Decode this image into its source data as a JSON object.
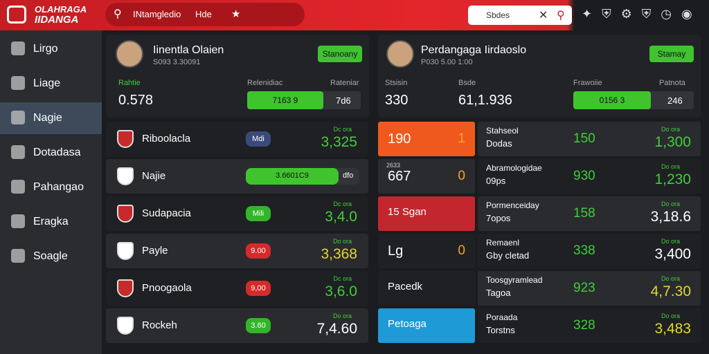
{
  "header": {
    "logo": [
      "OLAHRAGA",
      "IIDANGA"
    ],
    "search": "INtamgledio",
    "search_tag": "Hde",
    "search_box": "Sbdes"
  },
  "sidebar": {
    "items": [
      "Lirgo",
      "Liage",
      "Nagie",
      "Dotadasa",
      "Pahangao",
      "Eragka",
      "Soagle"
    ],
    "active": 2
  },
  "left_panel": {
    "name": "Iinentla Olaien",
    "subtitle": "S093 3.30091",
    "button": "Stanoany",
    "stat_labels": [
      "Rahtie",
      "Relenidiac",
      "Rateniar"
    ],
    "stat_value": "0.578",
    "bar_text": "7163 9",
    "stat_right": "7d6",
    "rows": [
      {
        "name": "Riboolacla",
        "pill": "Mdi",
        "color": "#3b4a7a",
        "label": "Dc ora",
        "value": "3,325",
        "value_color": "#3fcf3a"
      },
      {
        "name": "Najie",
        "bar": "3.6601C9",
        "bar_end": "dfo"
      },
      {
        "name": "Sudapacia",
        "pill": "Mili",
        "color": "#33b52a",
        "label": "Dc ora",
        "value": "3,4.0",
        "value_color": "#3fcf3a"
      },
      {
        "name": "Payle",
        "pill": "9.00",
        "color": "#d42a2a",
        "label": "Do ora",
        "value": "3,368",
        "value_color": "#e2d82c"
      },
      {
        "name": "Pnoogaola",
        "pill": "9,00",
        "color": "#d42a2a",
        "label": "Dc ora",
        "value": "3,6.0",
        "value_color": "#3fcf3a"
      },
      {
        "name": "Rockeh",
        "pill": "3.60",
        "color": "#33b52a",
        "label": "Do ora",
        "value": "7,4.60",
        "value_color": "#ffffff"
      }
    ]
  },
  "right_panel": {
    "name": "Perdangaga Iirdaoslo",
    "subtitle": "P030 5.00 1:00",
    "button": "Stamay",
    "stat_labels": [
      "Stsisin",
      "Bsde",
      "Frawoiie",
      "Patnota"
    ],
    "stat_values": [
      "330",
      "61,1.936"
    ],
    "bar_text": "0156 3",
    "stat_right": "246",
    "rows": [
      {
        "tile": "190",
        "tile_right": "1",
        "tile_color": "#f0591e",
        "title": "Stahseol",
        "subtitle": "Dodas",
        "score": "150",
        "label": "Do ora",
        "value": "1,300",
        "value_color": "#3fcf3a"
      },
      {
        "tile_label": "2633",
        "tile": "667",
        "tile_right": "0",
        "tile_color": "#2a2b2f",
        "title": "Abramologidae",
        "subtitle": "09ps",
        "score": "930",
        "label": "Do ora",
        "value": "1,230",
        "value_color": "#3fcf3a"
      },
      {
        "tile": "15 Sgan",
        "tile_color": "#c4262d",
        "title": "Pormenceiday",
        "subtitle": "7opos",
        "score": "158",
        "label": "Do ora",
        "value": "3,18.6",
        "value_color": "#ffffff"
      },
      {
        "tile": "Lg",
        "tile_right": "0",
        "tile_color": "#1f2023",
        "title": "Remaenl",
        "subtitle": "Gby cletad",
        "score": "338",
        "label": "Do ora",
        "value": "3,400",
        "value_color": "#ffffff"
      },
      {
        "tile": "Pacedk",
        "tile_color": "#1f2023",
        "title": "Toosgyramlead",
        "subtitle": "Tagoa",
        "score": "923",
        "label": "Do ora",
        "value": "4,7.30",
        "value_color": "#e2d82c"
      },
      {
        "tile": "Petoaga",
        "tile_color": "#1e9ad6",
        "title": "Poraada",
        "subtitle": "Torstns",
        "score": "328",
        "label": "Do ora",
        "value": "3,483",
        "value_color": "#e2d82c"
      }
    ]
  }
}
